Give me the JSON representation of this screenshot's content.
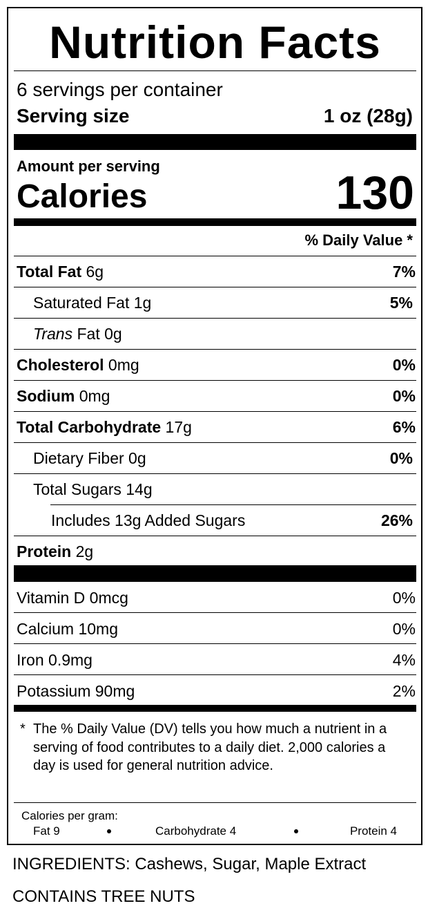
{
  "header": {
    "title": "Nutrition Facts"
  },
  "servings": {
    "per_container": "6 servings per container",
    "serving_size_label": "Serving size",
    "serving_size": "1 oz (28g)"
  },
  "calories": {
    "amount_per_serving": "Amount per serving",
    "label": "Calories",
    "value": "130"
  },
  "daily_value_header": "% Daily Value *",
  "nutrients": [
    {
      "name": "Total Fat",
      "amount": "6g",
      "dv": "7%"
    },
    {
      "name": "Saturated Fat",
      "amount": "1g",
      "dv": "5%"
    },
    {
      "name_italic": "Trans",
      "name": "Fat",
      "amount": "0g"
    },
    {
      "name": "Cholesterol",
      "amount": "0mg",
      "dv": "0%"
    },
    {
      "name": "Sodium",
      "amount": "0mg",
      "dv": "0%"
    },
    {
      "name": "Total Carbohydrate",
      "amount": "17g",
      "dv": "6%"
    },
    {
      "name": "Dietary Fiber",
      "amount": "0g",
      "dv": "0%"
    },
    {
      "name": "Total Sugars",
      "amount": "14g"
    },
    {
      "name": "Includes 13g Added Sugars",
      "dv": "26%"
    },
    {
      "name": "Protein",
      "amount": "2g"
    }
  ],
  "vitamins": [
    {
      "name": "Vitamin D",
      "amount": "0mcg",
      "dv": "0%"
    },
    {
      "name": "Calcium",
      "amount": "10mg",
      "dv": "0%"
    },
    {
      "name": "Iron",
      "amount": "0.9mg",
      "dv": "4%"
    },
    {
      "name": "Potassium",
      "amount": "90mg",
      "dv": "2%"
    }
  ],
  "footnote": {
    "marker": "*",
    "text": "The % Daily Value (DV) tells you how much a nutrient in a serving of food contributes to a daily diet. 2,000 calories a day is used for general nutrition advice."
  },
  "calories_per_gram": {
    "label": "Calories per gram:",
    "items": [
      "Fat 9",
      "Carbohydrate 4",
      "Protein 4"
    ]
  },
  "ingredients": "INGREDIENTS: Cashews, Sugar, Maple Extract",
  "allergens": "CONTAINS TREE NUTS"
}
